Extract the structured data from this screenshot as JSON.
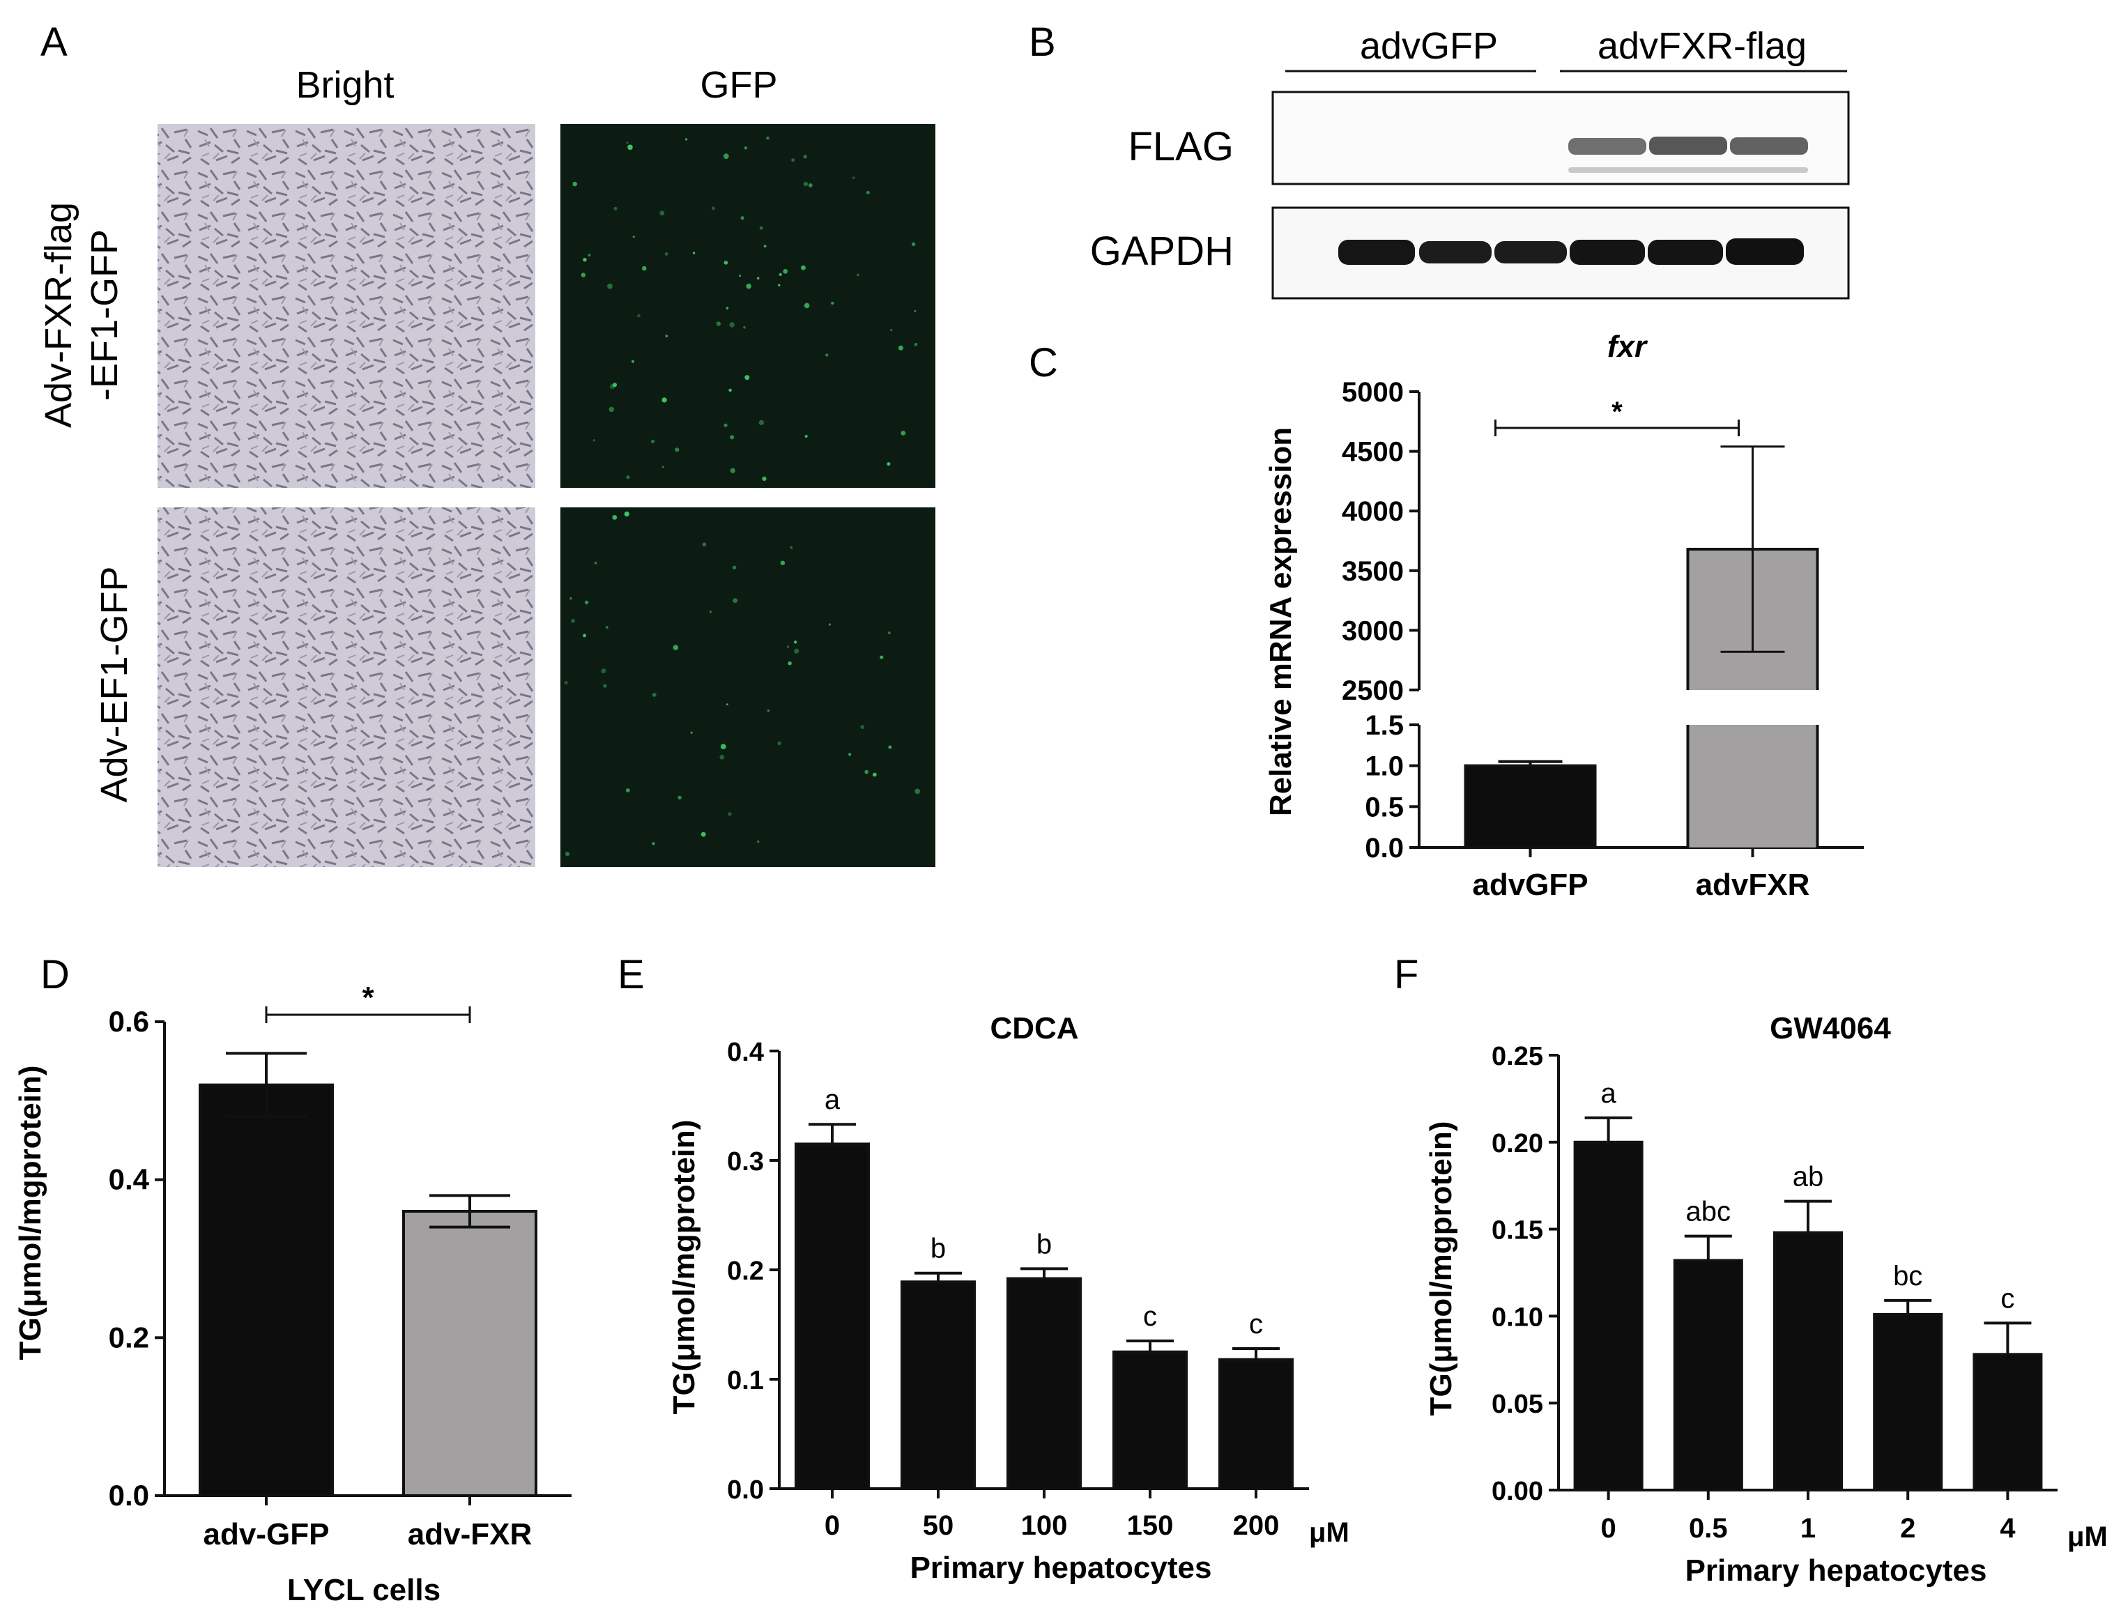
{
  "panel_letters": [
    "A",
    "B",
    "C",
    "D",
    "E",
    "F"
  ],
  "panel_a": {
    "col_labels": [
      "Bright",
      "GFP"
    ],
    "row_labels": [
      [
        "Adv-FXR-flag",
        "-EF1-GFP"
      ],
      [
        "Adv-EF1-GFP"
      ]
    ]
  },
  "panel_b": {
    "groups": [
      "advGFP",
      "advFXR-flag"
    ],
    "bands": [
      "FLAG",
      "GAPDH"
    ]
  },
  "colors": {
    "black_bar": "#0d0d0d",
    "grey_bar": "#a3a0a1",
    "gfp_green": "#3fd06a",
    "bright_bg": "#cfcbd6",
    "gfp_bg": "#0d1c12"
  },
  "chart_data": [
    {
      "panel": "C",
      "type": "bar",
      "title": "fxr",
      "ylabel": "Relative mRNA expression",
      "xlabel": "",
      "categories": [
        "advGFP",
        "advFXR"
      ],
      "values": [
        1.0,
        3680
      ],
      "errors": [
        0.05,
        860
      ],
      "axis_break": {
        "lower": [
          0,
          1.5
        ],
        "upper": [
          2500,
          5000
        ]
      },
      "yticks_lower": [
        "0.0",
        "0.5",
        "1.0",
        "1.5"
      ],
      "yticks_upper": [
        "2500",
        "3000",
        "3500",
        "4000",
        "4500",
        "5000"
      ],
      "significance": "*",
      "bar_colors": [
        "#0d0d0d",
        "#a3a0a1"
      ]
    },
    {
      "panel": "D",
      "type": "bar",
      "title": "",
      "ylabel": "TG(μmol/mgprotein)",
      "xlabel": "LYCL cells",
      "categories": [
        "adv-GFP",
        "adv-FXR"
      ],
      "values": [
        0.52,
        0.36
      ],
      "errors": [
        0.04,
        0.02
      ],
      "ylim": [
        0,
        0.6
      ],
      "yticks": [
        "0.0",
        "0.2",
        "0.4",
        "0.6"
      ],
      "significance": "*",
      "bar_colors": [
        "#0d0d0d",
        "#a3a0a1"
      ]
    },
    {
      "panel": "E",
      "type": "bar",
      "title": "CDCA",
      "ylabel": "TG(μmol/mgprotein)",
      "xlabel": "Primary hepatocytes",
      "unit": "μM",
      "categories": [
        "0",
        "50",
        "100",
        "150",
        "200"
      ],
      "values": [
        0.315,
        0.189,
        0.192,
        0.125,
        0.118
      ],
      "errors": [
        0.018,
        0.008,
        0.009,
        0.01,
        0.01
      ],
      "letters": [
        "a",
        "b",
        "b",
        "c",
        "c"
      ],
      "ylim": [
        0,
        0.4
      ],
      "yticks": [
        "0.0",
        "0.1",
        "0.2",
        "0.3",
        "0.4"
      ]
    },
    {
      "panel": "F",
      "type": "bar",
      "title": "GW4064",
      "ylabel": "TG(μmol/mgprotein)",
      "xlabel": "Primary hepatocytes",
      "unit": "μM",
      "categories": [
        "0",
        "0.5",
        "1",
        "2",
        "4"
      ],
      "values": [
        0.2,
        0.132,
        0.148,
        0.101,
        0.078
      ],
      "errors": [
        0.014,
        0.014,
        0.018,
        0.008,
        0.018
      ],
      "letters": [
        "a",
        "abc",
        "ab",
        "bc",
        "c"
      ],
      "ylim": [
        0,
        0.25
      ],
      "yticks": [
        "0.00",
        "0.05",
        "0.10",
        "0.15",
        "0.20",
        "0.25"
      ]
    }
  ]
}
